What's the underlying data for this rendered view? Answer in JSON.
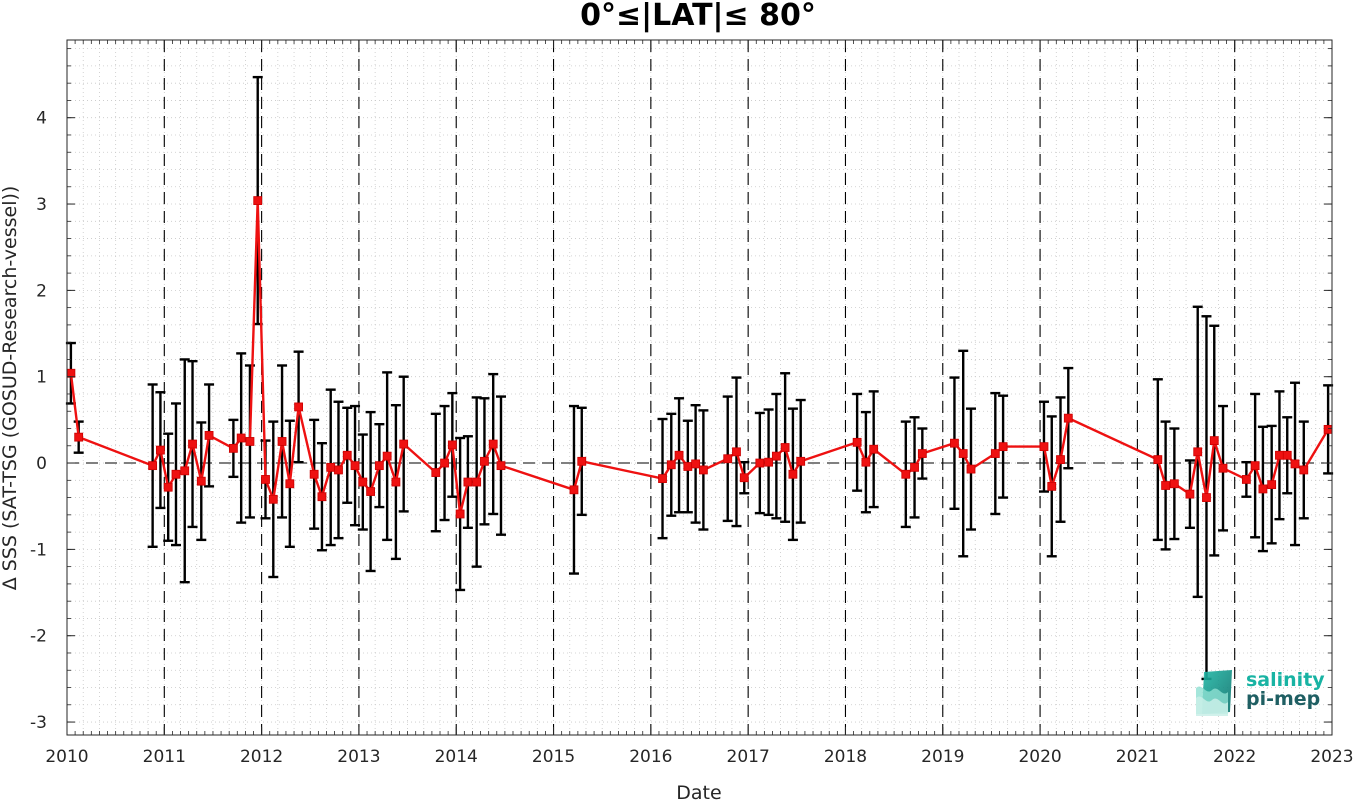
{
  "chart_data": {
    "type": "line",
    "title": "0°≤|LAT|≤ 80°",
    "xlabel": "Date",
    "ylabel": "Δ SSS (SAT-TSG (GOSUD-Research-vessel))",
    "xlim": [
      2010,
      2023
    ],
    "ylim": [
      -3.15,
      4.9
    ],
    "xticks": [
      "2010",
      "2011",
      "2012",
      "2013",
      "2014",
      "2015",
      "2016",
      "2017",
      "2018",
      "2019",
      "2020",
      "2021",
      "2022",
      "2023"
    ],
    "yticks": [
      "-3",
      "-2",
      "-1",
      "0",
      "1",
      "2",
      "3",
      "4"
    ],
    "grid": true,
    "year_vertical_dashed_lines": true,
    "zero_reference_dashed_line": true,
    "colors": {
      "series": "#ee1111",
      "errorbar": "#000000",
      "axis": "#262626"
    },
    "series": [
      {
        "marker": "square",
        "points": [
          {
            "x": 2010.04,
            "y": 1.04,
            "err": 0.35
          },
          {
            "x": 2010.12,
            "y": 0.3,
            "err": 0.18
          },
          {
            "x": 2010.88,
            "y": -0.03,
            "err": 0.94
          },
          {
            "x": 2010.96,
            "y": 0.15,
            "err": 0.67
          },
          {
            "x": 2011.04,
            "y": -0.28,
            "err": 0.62
          },
          {
            "x": 2011.12,
            "y": -0.13,
            "err": 0.82
          },
          {
            "x": 2011.21,
            "y": -0.09,
            "err": 1.29
          },
          {
            "x": 2011.29,
            "y": 0.22,
            "err": 0.96
          },
          {
            "x": 2011.38,
            "y": -0.21,
            "err": 0.68
          },
          {
            "x": 2011.46,
            "y": 0.32,
            "err": 0.59
          },
          {
            "x": 2011.71,
            "y": 0.17,
            "err": 0.33
          },
          {
            "x": 2011.79,
            "y": 0.29,
            "err": 0.98
          },
          {
            "x": 2011.88,
            "y": 0.25,
            "err": 0.88
          },
          {
            "x": 2011.96,
            "y": 3.04,
            "err": 1.43
          },
          {
            "x": 2012.04,
            "y": -0.19,
            "err": 0.45
          },
          {
            "x": 2012.12,
            "y": -0.42,
            "err": 0.9
          },
          {
            "x": 2012.21,
            "y": 0.25,
            "err": 0.88
          },
          {
            "x": 2012.29,
            "y": -0.24,
            "err": 0.73
          },
          {
            "x": 2012.38,
            "y": 0.65,
            "err": 0.64
          },
          {
            "x": 2012.54,
            "y": -0.13,
            "err": 0.63
          },
          {
            "x": 2012.62,
            "y": -0.39,
            "err": 0.62
          },
          {
            "x": 2012.71,
            "y": -0.05,
            "err": 0.9
          },
          {
            "x": 2012.79,
            "y": -0.08,
            "err": 0.79
          },
          {
            "x": 2012.88,
            "y": 0.09,
            "err": 0.55
          },
          {
            "x": 2012.96,
            "y": -0.03,
            "err": 0.69
          },
          {
            "x": 2013.04,
            "y": -0.22,
            "err": 0.55
          },
          {
            "x": 2013.12,
            "y": -0.33,
            "err": 0.92
          },
          {
            "x": 2013.21,
            "y": -0.03,
            "err": 0.48
          },
          {
            "x": 2013.29,
            "y": 0.08,
            "err": 0.97
          },
          {
            "x": 2013.38,
            "y": -0.22,
            "err": 0.89
          },
          {
            "x": 2013.46,
            "y": 0.22,
            "err": 0.78
          },
          {
            "x": 2013.79,
            "y": -0.11,
            "err": 0.68
          },
          {
            "x": 2013.88,
            "y": 0.0,
            "err": 0.66
          },
          {
            "x": 2013.96,
            "y": 0.21,
            "err": 0.6
          },
          {
            "x": 2014.04,
            "y": -0.59,
            "err": 0.88
          },
          {
            "x": 2014.12,
            "y": -0.22,
            "err": 0.53
          },
          {
            "x": 2014.21,
            "y": -0.22,
            "err": 0.98
          },
          {
            "x": 2014.29,
            "y": 0.02,
            "err": 0.73
          },
          {
            "x": 2014.38,
            "y": 0.22,
            "err": 0.81
          },
          {
            "x": 2014.46,
            "y": -0.03,
            "err": 0.8
          },
          {
            "x": 2015.21,
            "y": -0.31,
            "err": 0.97
          },
          {
            "x": 2015.29,
            "y": 0.02,
            "err": 0.62
          },
          {
            "x": 2016.12,
            "y": -0.18,
            "err": 0.69
          },
          {
            "x": 2016.21,
            "y": -0.02,
            "err": 0.59
          },
          {
            "x": 2016.29,
            "y": 0.09,
            "err": 0.66
          },
          {
            "x": 2016.38,
            "y": -0.04,
            "err": 0.53
          },
          {
            "x": 2016.46,
            "y": -0.01,
            "err": 0.68
          },
          {
            "x": 2016.54,
            "y": -0.08,
            "err": 0.69
          },
          {
            "x": 2016.79,
            "y": 0.05,
            "err": 0.72
          },
          {
            "x": 2016.88,
            "y": 0.13,
            "err": 0.86
          },
          {
            "x": 2016.96,
            "y": -0.17,
            "err": 0.18
          },
          {
            "x": 2017.12,
            "y": 0.0,
            "err": 0.58
          },
          {
            "x": 2017.21,
            "y": 0.01,
            "err": 0.61
          },
          {
            "x": 2017.29,
            "y": 0.08,
            "err": 0.72
          },
          {
            "x": 2017.38,
            "y": 0.18,
            "err": 0.86
          },
          {
            "x": 2017.46,
            "y": -0.13,
            "err": 0.76
          },
          {
            "x": 2017.54,
            "y": 0.02,
            "err": 0.71
          },
          {
            "x": 2018.12,
            "y": 0.24,
            "err": 0.56
          },
          {
            "x": 2018.21,
            "y": 0.01,
            "err": 0.58
          },
          {
            "x": 2018.29,
            "y": 0.16,
            "err": 0.67
          },
          {
            "x": 2018.62,
            "y": -0.13,
            "err": 0.61
          },
          {
            "x": 2018.71,
            "y": -0.05,
            "err": 0.58
          },
          {
            "x": 2018.79,
            "y": 0.11,
            "err": 0.29
          },
          {
            "x": 2019.12,
            "y": 0.23,
            "err": 0.76
          },
          {
            "x": 2019.21,
            "y": 0.11,
            "err": 1.19
          },
          {
            "x": 2019.29,
            "y": -0.07,
            "err": 0.7
          },
          {
            "x": 2019.54,
            "y": 0.11,
            "err": 0.7
          },
          {
            "x": 2019.62,
            "y": 0.19,
            "err": 0.59
          },
          {
            "x": 2020.04,
            "y": 0.19,
            "err": 0.52
          },
          {
            "x": 2020.12,
            "y": -0.27,
            "err": 0.81
          },
          {
            "x": 2020.21,
            "y": 0.04,
            "err": 0.72
          },
          {
            "x": 2020.29,
            "y": 0.52,
            "err": 0.58
          },
          {
            "x": 2021.21,
            "y": 0.04,
            "err": 0.93
          },
          {
            "x": 2021.29,
            "y": -0.26,
            "err": 0.74
          },
          {
            "x": 2021.38,
            "y": -0.24,
            "err": 0.64
          },
          {
            "x": 2021.54,
            "y": -0.36,
            "err": 0.39
          },
          {
            "x": 2021.62,
            "y": 0.13,
            "err": 1.68
          },
          {
            "x": 2021.71,
            "y": -0.4,
            "err": 2.1
          },
          {
            "x": 2021.79,
            "y": 0.26,
            "err": 1.33
          },
          {
            "x": 2021.88,
            "y": -0.06,
            "err": 0.72
          },
          {
            "x": 2022.12,
            "y": -0.19,
            "err": 0.2
          },
          {
            "x": 2022.21,
            "y": -0.03,
            "err": 0.83
          },
          {
            "x": 2022.29,
            "y": -0.3,
            "err": 0.72
          },
          {
            "x": 2022.38,
            "y": -0.25,
            "err": 0.68
          },
          {
            "x": 2022.46,
            "y": 0.09,
            "err": 0.74
          },
          {
            "x": 2022.54,
            "y": 0.09,
            "err": 0.44
          },
          {
            "x": 2022.62,
            "y": -0.01,
            "err": 0.94
          },
          {
            "x": 2022.71,
            "y": -0.08,
            "err": 0.56
          },
          {
            "x": 2022.96,
            "y": 0.39,
            "err": 0.51
          }
        ]
      }
    ]
  },
  "logo": {
    "name": "salinity-pi-mep-logo",
    "line1": "salinity",
    "line2": "pi-mep",
    "colors": {
      "line1": "#18b3a3",
      "line2": "#1f5f63"
    }
  }
}
